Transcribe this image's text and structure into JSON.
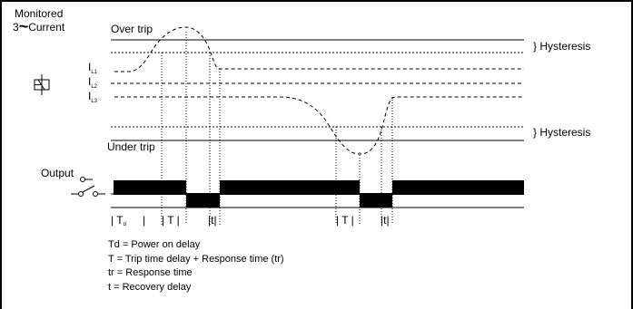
{
  "signals": {
    "monitored_line1": "Monitored",
    "monitored_line2_prefix": "3",
    "monitored_tilde": "~",
    "monitored_line2_suffix": "Current",
    "over_trip": "Over trip",
    "under_trip": "Under trip",
    "hysteresis_upper": "} Hysteresis",
    "hysteresis_lower": "} Hysteresis",
    "phase_main": [
      "I",
      "I",
      "I"
    ],
    "phase_sub": [
      "L1",
      "L2",
      "L3"
    ]
  },
  "output": {
    "label": "Output"
  },
  "timing": {
    "labels": [
      "| T",
      "d",
      "|",
      "| T |",
      "|t|",
      "| T |",
      "|t|"
    ]
  },
  "legend": [
    "Td = Power on delay",
    "T = Trip time delay + Response time (tr)",
    "tr = Response time",
    "t = Recovery delay"
  ]
}
